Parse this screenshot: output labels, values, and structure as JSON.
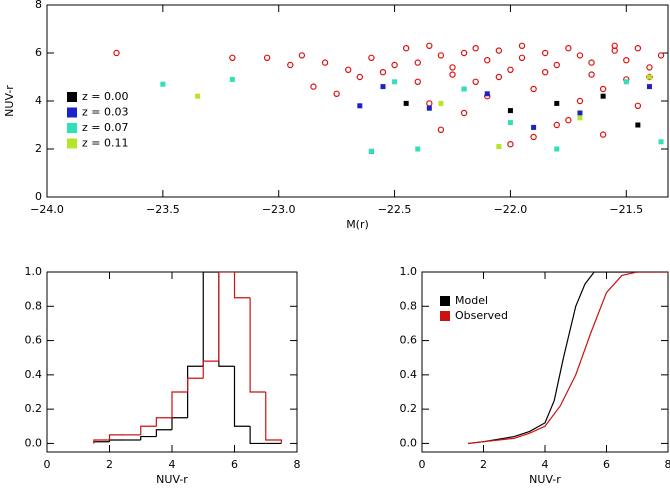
{
  "chart_data": [
    {
      "type": "scatter",
      "xlabel": "M(r)",
      "ylabel": "NUV-r",
      "xlim": [
        -24.0,
        -21.32
      ],
      "ylim": [
        0,
        8
      ],
      "xticks": [
        {
          "value": -24.0,
          "label": "−24.0"
        },
        {
          "value": -23.5,
          "label": "−23.5"
        },
        {
          "value": -23.0,
          "label": "−23.0"
        },
        {
          "value": -22.5,
          "label": "−22.5"
        },
        {
          "value": -22.0,
          "label": "−22.0"
        },
        {
          "value": -21.5,
          "label": "−21.5"
        }
      ],
      "yticks": [
        0,
        2,
        4,
        6,
        8
      ],
      "series": [
        {
          "color": "#dd1111",
          "marker": "open",
          "x": [
            -23.7,
            -23.2,
            -23.05,
            -22.95,
            -22.9,
            -22.85,
            -22.8,
            -22.75,
            -22.7,
            -22.65,
            -22.6,
            -22.55,
            -22.5,
            -22.45,
            -22.4,
            -22.35,
            -22.3,
            -22.25,
            -22.2,
            -22.15,
            -22.1,
            -22.05,
            -22.0,
            -21.95,
            -21.9,
            -21.85,
            -21.8,
            -21.75,
            -21.7,
            -21.65,
            -21.6,
            -21.55,
            -21.5,
            -21.45,
            -21.4,
            -21.35,
            -22.4,
            -22.3,
            -22.2,
            -22.1,
            -22.0,
            -21.9,
            -21.8,
            -21.7,
            -21.6,
            -21.5,
            -21.4,
            -22.35,
            -22.15,
            -21.95,
            -21.75,
            -21.55,
            -21.45,
            -22.25,
            -22.05,
            -21.85,
            -21.65
          ],
          "values": [
            6.0,
            5.8,
            5.8,
            5.5,
            5.9,
            4.6,
            5.6,
            4.3,
            5.3,
            5.0,
            5.8,
            5.2,
            5.5,
            6.2,
            5.6,
            3.9,
            5.9,
            5.4,
            6.0,
            4.8,
            5.7,
            6.1,
            5.3,
            5.8,
            2.5,
            6.0,
            5.5,
            3.2,
            5.9,
            5.6,
            4.5,
            6.1,
            5.7,
            3.8,
            5.4,
            5.9,
            4.8,
            2.8,
            3.5,
            4.2,
            2.2,
            4.5,
            3.0,
            4.0,
            2.6,
            4.9,
            5.0,
            6.3,
            6.2,
            6.3,
            6.2,
            6.3,
            6.2,
            5.1,
            5.0,
            5.2,
            5.1
          ]
        },
        {
          "name": "z = 0.00",
          "color": "#000000",
          "marker": "filled",
          "x": [
            -22.6,
            -22.45,
            -22.2,
            -22.0,
            -21.8,
            -21.6,
            -21.45
          ],
          "values": [
            1.9,
            3.9,
            4.5,
            3.6,
            3.9,
            4.2,
            3.0
          ]
        },
        {
          "name": "z = 0.03",
          "color": "#1a22c8",
          "marker": "filled",
          "x": [
            -22.65,
            -22.55,
            -22.35,
            -22.1,
            -21.9,
            -21.7,
            -21.4
          ],
          "values": [
            3.8,
            4.6,
            3.7,
            4.3,
            2.9,
            3.5,
            4.6
          ]
        },
        {
          "name": "z = 0.07",
          "color": "#2fe0b8",
          "marker": "filled",
          "x": [
            -23.5,
            -23.2,
            -22.6,
            -22.5,
            -22.4,
            -22.2,
            -22.0,
            -21.8,
            -21.5,
            -21.35
          ],
          "values": [
            4.7,
            4.9,
            1.9,
            4.8,
            2.0,
            4.5,
            3.1,
            2.0,
            4.8,
            2.3
          ]
        },
        {
          "name": "z = 0.11",
          "color": "#b4e626",
          "marker": "filled",
          "x": [
            -23.35,
            -22.3,
            -22.05,
            -21.7,
            -21.4
          ],
          "values": [
            4.2,
            3.9,
            2.1,
            3.3,
            5.0
          ]
        }
      ]
    },
    {
      "type": "histogram",
      "xlabel": "NUV-r",
      "xlim": [
        0,
        8
      ],
      "ylim": [
        -0.05,
        1.0
      ],
      "xticks": [
        0,
        2,
        4,
        6,
        8
      ],
      "yticks": [
        {
          "value": 0,
          "label": "0.0"
        },
        0.2,
        0.4,
        0.6,
        0.8,
        {
          "value": 1,
          "label": "1.0"
        }
      ],
      "bins": [
        1.5,
        2.0,
        2.5,
        3.0,
        3.5,
        4.0,
        4.5,
        5.0,
        5.5,
        6.0,
        6.5,
        7.0,
        7.5
      ],
      "series": [
        {
          "color": "#000000",
          "values": [
            0.01,
            0.02,
            0.02,
            0.04,
            0.08,
            0.15,
            0.45,
            1.0,
            0.45,
            0.1,
            0,
            0
          ]
        },
        {
          "color": "#cc1111",
          "values": [
            0.02,
            0.05,
            0.05,
            0.1,
            0.15,
            0.3,
            0.38,
            0.48,
            1.0,
            0.85,
            0.3,
            0.02
          ]
        }
      ]
    },
    {
      "type": "line",
      "xlabel": "NUV-r",
      "xlim": [
        0,
        8
      ],
      "ylim": [
        -0.05,
        1.0
      ],
      "xticks": [
        0,
        2,
        4,
        6,
        8
      ],
      "yticks": [
        {
          "value": 0,
          "label": "0.0"
        },
        0.2,
        0.4,
        0.6,
        0.8,
        {
          "value": 1,
          "label": "1.0"
        }
      ],
      "series": [
        {
          "name": "Model",
          "color": "#000000",
          "x": [
            1.5,
            2,
            3,
            3.5,
            4,
            4.3,
            4.6,
            5,
            5.3,
            5.6,
            6,
            8
          ],
          "values": [
            0,
            0.01,
            0.04,
            0.07,
            0.12,
            0.25,
            0.5,
            0.8,
            0.93,
            1.0,
            1.0,
            1.0
          ]
        },
        {
          "name": "Observed",
          "color": "#cc1111",
          "x": [
            1.5,
            2,
            3,
            3.5,
            4,
            4.5,
            5,
            5.5,
            6,
            6.5,
            7,
            8
          ],
          "values": [
            0,
            0.01,
            0.03,
            0.06,
            0.1,
            0.22,
            0.4,
            0.65,
            0.88,
            0.98,
            1.0,
            1.0
          ]
        }
      ]
    }
  ]
}
